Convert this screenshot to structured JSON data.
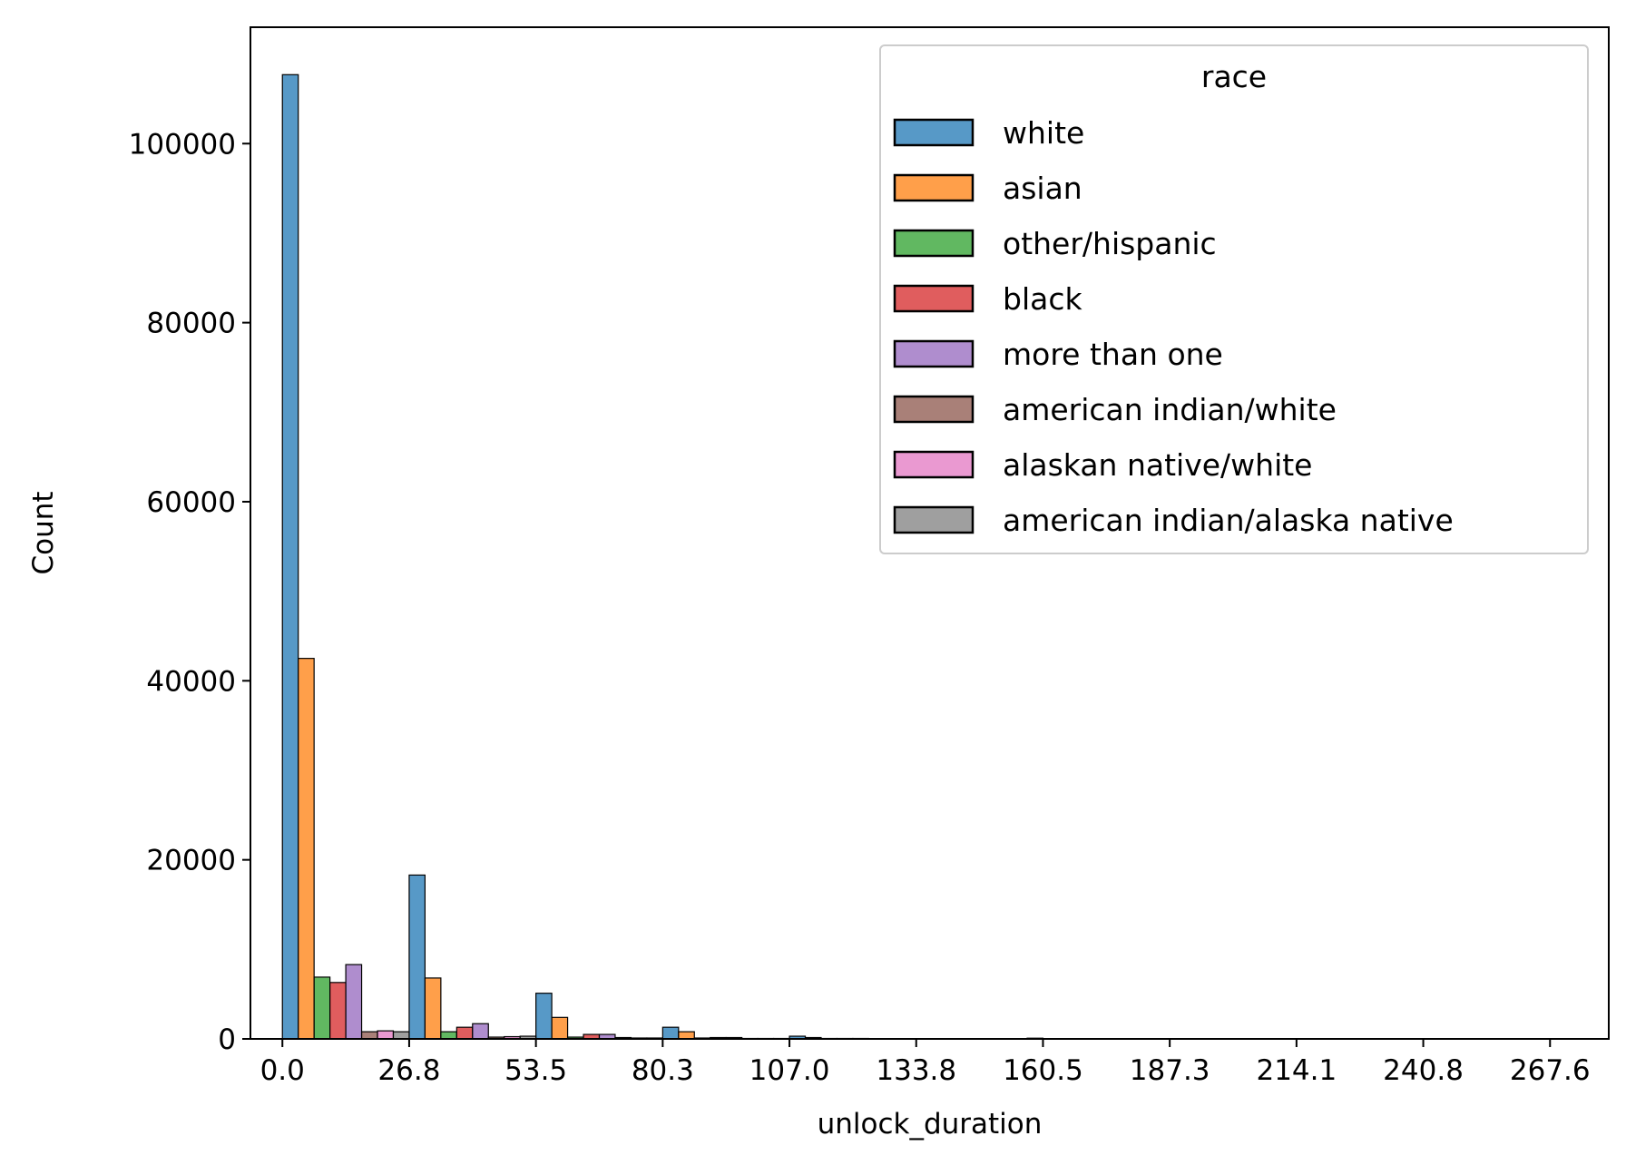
{
  "chart_data": {
    "type": "bar",
    "title": "",
    "xlabel": "unlock_duration",
    "ylabel": "Count",
    "ylim": [
      0,
      113000
    ],
    "xlim": [
      -6.75,
      280
    ],
    "y_ticks": [
      "0",
      "20000",
      "40000",
      "60000",
      "80000",
      "100000"
    ],
    "y_tick_values": [
      0,
      20000,
      40000,
      60000,
      80000,
      100000
    ],
    "x_ticks": [
      "0.0",
      "26.8",
      "53.5",
      "80.3",
      "107.0",
      "133.8",
      "160.5",
      "187.3",
      "214.1",
      "240.8",
      "267.6"
    ],
    "x_tick_values": [
      0.0,
      26.76,
      53.52,
      80.28,
      107.04,
      133.8,
      160.56,
      187.32,
      214.08,
      240.84,
      267.6
    ],
    "bin_width": 26.76,
    "bin_starts": [
      0.0,
      26.76,
      53.52,
      80.28,
      107.04,
      133.8,
      160.56,
      187.32,
      214.08,
      240.84
    ],
    "legend_title": "race",
    "legend_position": "upper right",
    "grid": false,
    "series": [
      {
        "name": "white",
        "color": "#1f77b4",
        "values": [
          107700,
          18300,
          5100,
          1300,
          300,
          0,
          0,
          0,
          0,
          0
        ]
      },
      {
        "name": "asian",
        "color": "#ff7f0e",
        "values": [
          42500,
          6800,
          2400,
          800,
          150,
          0,
          0,
          0,
          0,
          0
        ]
      },
      {
        "name": "other/hispanic",
        "color": "#2ca02c",
        "values": [
          6900,
          800,
          200,
          100,
          50,
          0,
          0,
          0,
          0,
          0
        ]
      },
      {
        "name": "black",
        "color": "#d62728",
        "values": [
          6300,
          1300,
          500,
          150,
          50,
          0,
          0,
          0,
          0,
          0
        ]
      },
      {
        "name": "more than one",
        "color": "#9467bd",
        "values": [
          8300,
          1700,
          500,
          150,
          50,
          0,
          0,
          0,
          0,
          0
        ]
      },
      {
        "name": "american indian/white",
        "color": "#8c564b",
        "values": [
          800,
          200,
          150,
          50,
          20,
          0,
          0,
          0,
          0,
          0
        ]
      },
      {
        "name": "alaskan native/white",
        "color": "#e377c2",
        "values": [
          900,
          250,
          100,
          50,
          20,
          0,
          0,
          0,
          0,
          0
        ]
      },
      {
        "name": "american indian/alaska native",
        "color": "#7f7f7f",
        "values": [
          800,
          300,
          100,
          50,
          20,
          80,
          0,
          0,
          0,
          0
        ]
      }
    ]
  }
}
